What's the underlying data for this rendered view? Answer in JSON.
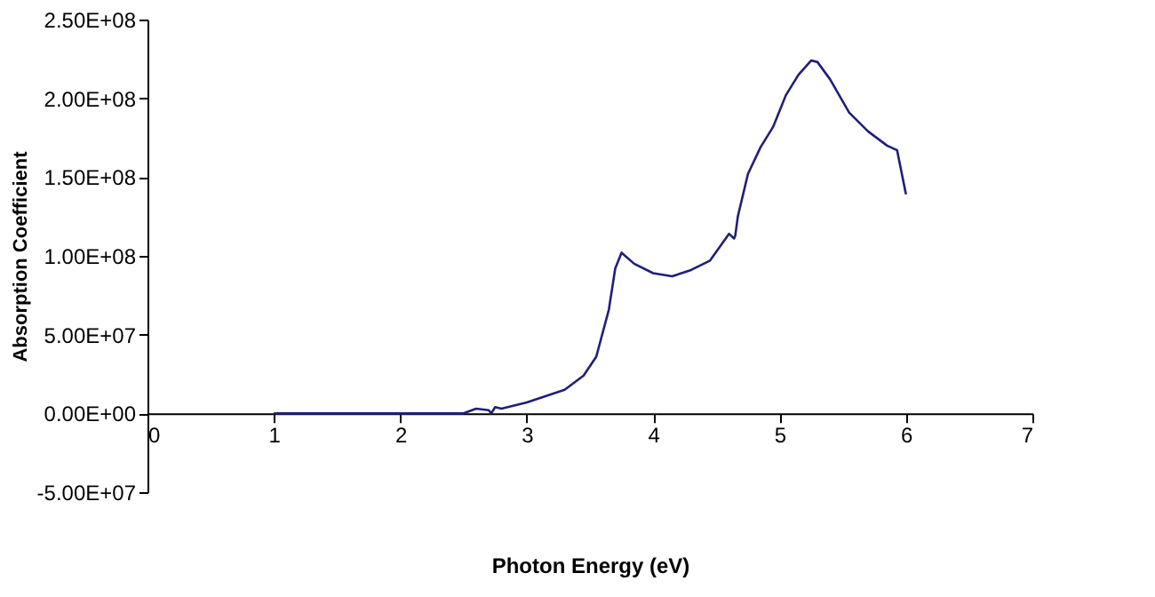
{
  "chart_data": {
    "type": "line",
    "xlabel": "Photon Energy (eV)",
    "ylabel": "Absorption Coefficient",
    "x": [
      1,
      2.5,
      2.6,
      2.7,
      2.72,
      2.75,
      2.8,
      3.0,
      3.3,
      3.45,
      3.55,
      3.65,
      3.7,
      3.75,
      3.85,
      4.0,
      4.15,
      4.3,
      4.45,
      4.6,
      4.64,
      4.65,
      4.67,
      4.75,
      4.85,
      4.95,
      5.05,
      5.15,
      5.25,
      5.3,
      5.4,
      5.55,
      5.7,
      5.85,
      5.93,
      6.0
    ],
    "series": [
      {
        "color": "#1f1f7a",
        "values": [
          0,
          0,
          3000000,
          2000000,
          0,
          4000000,
          3000000,
          7000000,
          15000000,
          24000000,
          36000000,
          66000000,
          92000000,
          102000000,
          95000000,
          89000000,
          87000000,
          91000000,
          97000000,
          114000000,
          111000000,
          113000000,
          125000000,
          152000000,
          169000000,
          182000000,
          202000000,
          215000000,
          224000000,
          223000000,
          212000000,
          191000000,
          179000000,
          170000000,
          167000000,
          139000000
        ]
      }
    ],
    "xlim": [
      0,
      7
    ],
    "xticks": [
      0,
      1,
      2,
      3,
      4,
      5,
      6,
      7
    ],
    "ylim": [
      -50000000,
      250000000
    ],
    "yticks": [
      {
        "value": -50000000,
        "label": "-5.00E+07"
      },
      {
        "value": 0,
        "label": "0.00E+00"
      },
      {
        "value": 50000000,
        "label": "5.00E+07"
      },
      {
        "value": 100000000,
        "label": "1.00E+08"
      },
      {
        "value": 150000000,
        "label": "1.50E+08"
      },
      {
        "value": 200000000,
        "label": "2.00E+08"
      },
      {
        "value": 250000000,
        "label": "2.50E+08"
      }
    ],
    "grid": false,
    "marker": "none",
    "line_style": "solid"
  }
}
